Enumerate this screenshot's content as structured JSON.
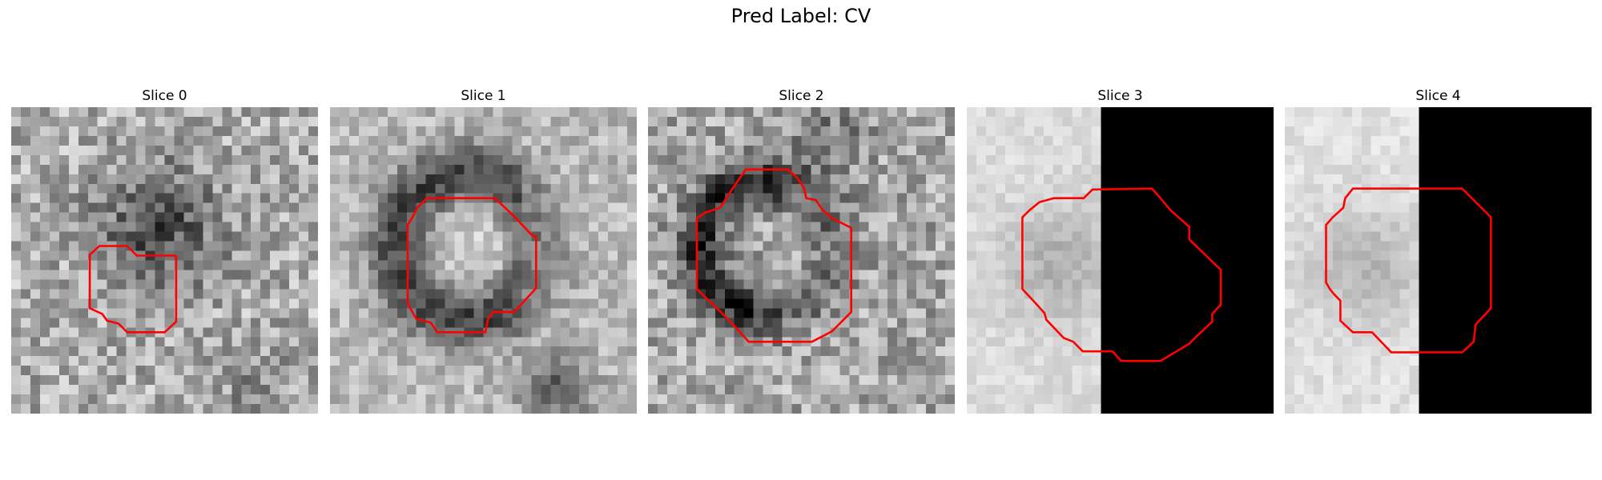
{
  "figure": {
    "title": "Pred Label: CV",
    "contour_color": "#ff0000"
  },
  "slices": [
    {
      "title": "Slice 0"
    },
    {
      "title": "Slice 1"
    },
    {
      "title": "Slice 2"
    },
    {
      "title": "Slice 3"
    },
    {
      "title": "Slice 4"
    }
  ]
}
